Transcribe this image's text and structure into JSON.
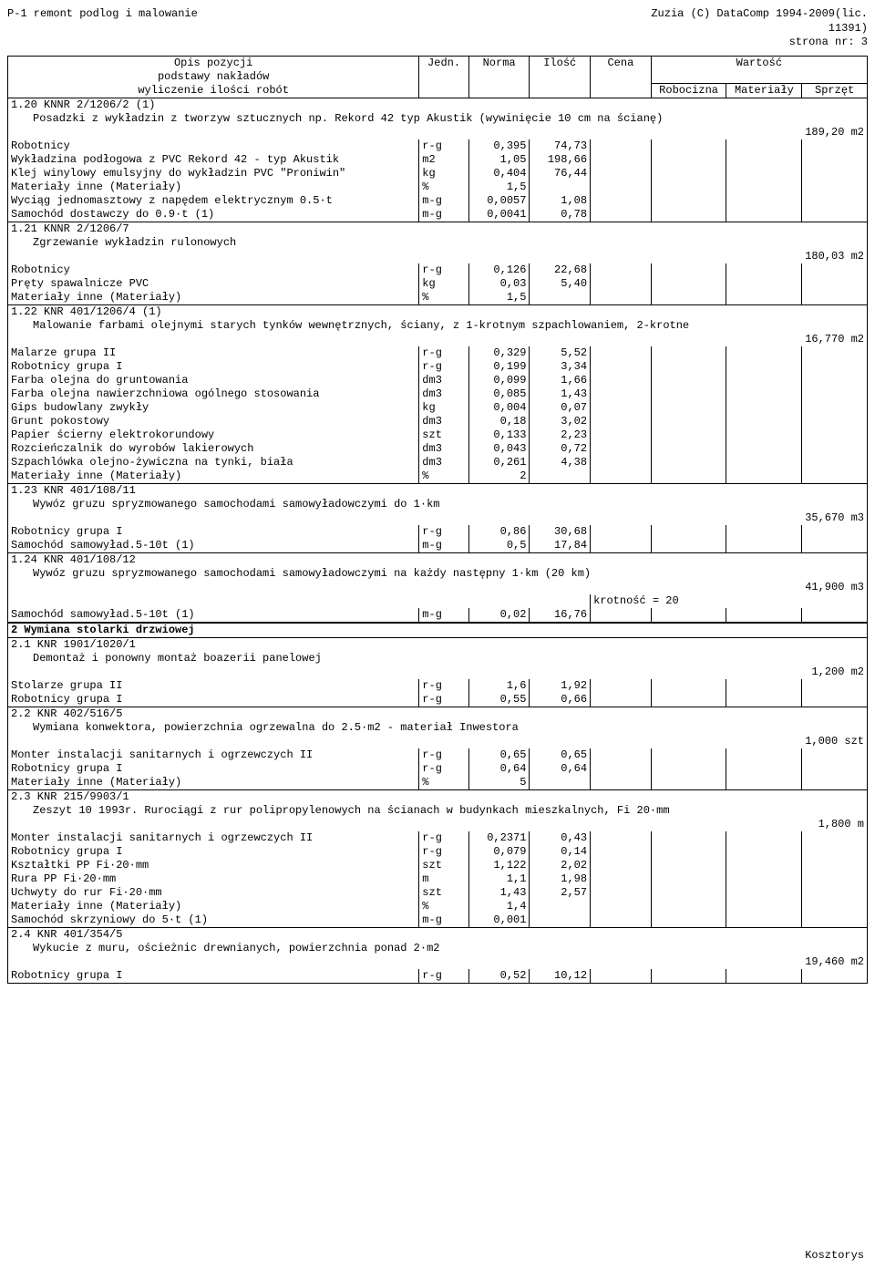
{
  "header": {
    "left": "P-1 remont podlog i malowanie",
    "right1": "Zuzia (C) DataComp 1994-2009(lic.",
    "right2": "11391)",
    "right3": "strona nr:    3"
  },
  "columns": {
    "desc1": "Opis pozycji",
    "desc2": "podstawy nakładów",
    "desc3": "wyliczenie ilości robót",
    "unit": "Jedn.",
    "norm": "Norma",
    "qty": "Ilość",
    "price": "Cena",
    "value": "Wartość",
    "lab": "Robocizna",
    "mat": "Materiały",
    "eq": "Sprzęt"
  },
  "items": [
    {
      "code": "1.20 KNNR 2/1206/2 (1)",
      "title": "Posadzki z wykładzin z tworzyw sztucznych np. Rekord 42 typ Akustik (wywinięcie 10 cm na ścianę)",
      "sum": "189,20 m2",
      "rows": [
        {
          "d": "Robotnicy",
          "u": "r-g",
          "n": "0,395",
          "q": "74,73"
        },
        {
          "d": "Wykładzina podłogowa z PVC  Rekord 42 - typ Akustik",
          "u": "m2",
          "n": "1,05",
          "q": "198,66"
        },
        {
          "d": "Klej winylowy emulsyjny do wykładzin PVC \"Proniwin\"",
          "u": "kg",
          "n": "0,404",
          "q": "76,44"
        },
        {
          "d": "Materiały inne (Materiały)",
          "u": "%",
          "n": "1,5",
          "q": ""
        },
        {
          "d": "Wyciąg jednomasztowy z napędem elektrycznym 0.5·t",
          "u": "m-g",
          "n": "0,0057",
          "q": "1,08"
        },
        {
          "d": "Samochód dostawczy do 0.9·t (1)",
          "u": "m-g",
          "n": "0,0041",
          "q": "0,78"
        }
      ]
    },
    {
      "code": "1.21 KNNR 2/1206/7",
      "title": "Zgrzewanie wykładzin rulonowych",
      "sum": "180,03 m2",
      "rows": [
        {
          "d": "Robotnicy",
          "u": "r-g",
          "n": "0,126",
          "q": "22,68"
        },
        {
          "d": "Pręty spawalnicze PVC",
          "u": "kg",
          "n": "0,03",
          "q": "5,40"
        },
        {
          "d": "Materiały inne (Materiały)",
          "u": "%",
          "n": "1,5",
          "q": ""
        }
      ]
    },
    {
      "code": "1.22 KNR 401/1206/4 (1)",
      "title": "Malowanie farbami olejnymi starych tynków wewnętrznych, ściany, z 1-krotnym szpachlowaniem, 2-krotne",
      "sum": "16,770 m2",
      "rows": [
        {
          "d": "Malarze grupa II",
          "u": "r-g",
          "n": "0,329",
          "q": "5,52"
        },
        {
          "d": "Robotnicy grupa I",
          "u": "r-g",
          "n": "0,199",
          "q": "3,34"
        },
        {
          "d": "Farba olejna do gruntowania",
          "u": "dm3",
          "n": "0,099",
          "q": "1,66"
        },
        {
          "d": "Farba olejna nawierzchniowa ogólnego stosowania",
          "u": "dm3",
          "n": "0,085",
          "q": "1,43"
        },
        {
          "d": "Gips budowlany zwykły",
          "u": "kg",
          "n": "0,004",
          "q": "0,07"
        },
        {
          "d": "Grunt pokostowy",
          "u": "dm3",
          "n": "0,18",
          "q": "3,02"
        },
        {
          "d": "Papier ścierny elektrokorundowy",
          "u": "szt",
          "n": "0,133",
          "q": "2,23"
        },
        {
          "d": "Rozcieńczalnik do wyrobów lakierowych",
          "u": "dm3",
          "n": "0,043",
          "q": "0,72"
        },
        {
          "d": "Szpachlówka olejno-żywiczna na tynki, biała",
          "u": "dm3",
          "n": "0,261",
          "q": "4,38"
        },
        {
          "d": "Materiały inne (Materiały)",
          "u": "%",
          "n": "2",
          "q": ""
        }
      ]
    },
    {
      "code": "1.23 KNR 401/108/11",
      "title": "Wywóz gruzu spryzmowanego samochodami samowyładowczymi do 1·km",
      "sum": "35,670 m3",
      "rows": [
        {
          "d": "Robotnicy grupa I",
          "u": "r-g",
          "n": "0,86",
          "q": "30,68"
        },
        {
          "d": "Samochód samowyład.5-10t (1)",
          "u": "m-g",
          "n": "0,5",
          "q": "17,84"
        }
      ]
    },
    {
      "code": "1.24 KNR 401/108/12",
      "title": "Wywóz gruzu spryzmowanego samochodami samowyładowczymi na każdy następny 1·km  (20 km)",
      "sum": "41,900 m3",
      "extra": "krotność = 20",
      "rows": [
        {
          "d": "Samochód samowyład.5-10t (1)",
          "u": "m-g",
          "n": "0,02",
          "q": "16,76"
        }
      ]
    },
    {
      "section": "2 Wymiana stolarki drzwiowej"
    },
    {
      "code": "2.1 KNR 1901/1020/1",
      "title": "Demontaż i ponowny montaż boazerii panelowej",
      "sum": "1,200 m2",
      "rows": [
        {
          "d": "Stolarze grupa II",
          "u": "r-g",
          "n": "1,6",
          "q": "1,92"
        },
        {
          "d": "Robotnicy grupa I",
          "u": "r-g",
          "n": "0,55",
          "q": "0,66"
        }
      ]
    },
    {
      "code": "2.2 KNR 402/516/5",
      "title": "Wymiana konwektora, powierzchnia ogrzewalna do 2.5·m2 - materiał Inwestora",
      "sum": "1,000 szt",
      "rows": [
        {
          "d": "Monter instalacji sanitarnych i ogrzewczych II",
          "u": "r-g",
          "n": "0,65",
          "q": "0,65"
        },
        {
          "d": "Robotnicy grupa I",
          "u": "r-g",
          "n": "0,64",
          "q": "0,64"
        },
        {
          "d": "Materiały inne (Materiały)",
          "u": "%",
          "n": "5",
          "q": ""
        }
      ]
    },
    {
      "code": "2.3 KNR 215/9903/1",
      "title": "Zeszyt 10 1993r. Rurociągi z rur polipropylenowych na ścianach w budynkach mieszkalnych, Fi 20·mm",
      "sum": "1,800 m",
      "rows": [
        {
          "d": "Monter instalacji sanitarnych i ogrzewczych II",
          "u": "r-g",
          "n": "0,2371",
          "q": "0,43"
        },
        {
          "d": "Robotnicy grupa I",
          "u": "r-g",
          "n": "0,079",
          "q": "0,14"
        },
        {
          "d": "Kształtki PP Fi·20·mm",
          "u": "szt",
          "n": "1,122",
          "q": "2,02"
        },
        {
          "d": "Rura PP Fi·20·mm",
          "u": "m",
          "n": "1,1",
          "q": "1,98"
        },
        {
          "d": "Uchwyty do rur Fi·20·mm",
          "u": "szt",
          "n": "1,43",
          "q": "2,57"
        },
        {
          "d": "Materiały inne (Materiały)",
          "u": "%",
          "n": "1,4",
          "q": ""
        },
        {
          "d": "Samochód skrzyniowy do 5·t (1)",
          "u": "m-g",
          "n": "0,001",
          "q": ""
        }
      ]
    },
    {
      "code": "2.4 KNR 401/354/5",
      "title": "Wykucie z muru, ościeżnic drewnianych, powierzchnia ponad 2·m2",
      "sum": "19,460 m2",
      "rows": [
        {
          "d": "Robotnicy grupa I",
          "u": "r-g",
          "n": "0,52",
          "q": "10,12"
        }
      ]
    }
  ],
  "footer": "Kosztorys"
}
